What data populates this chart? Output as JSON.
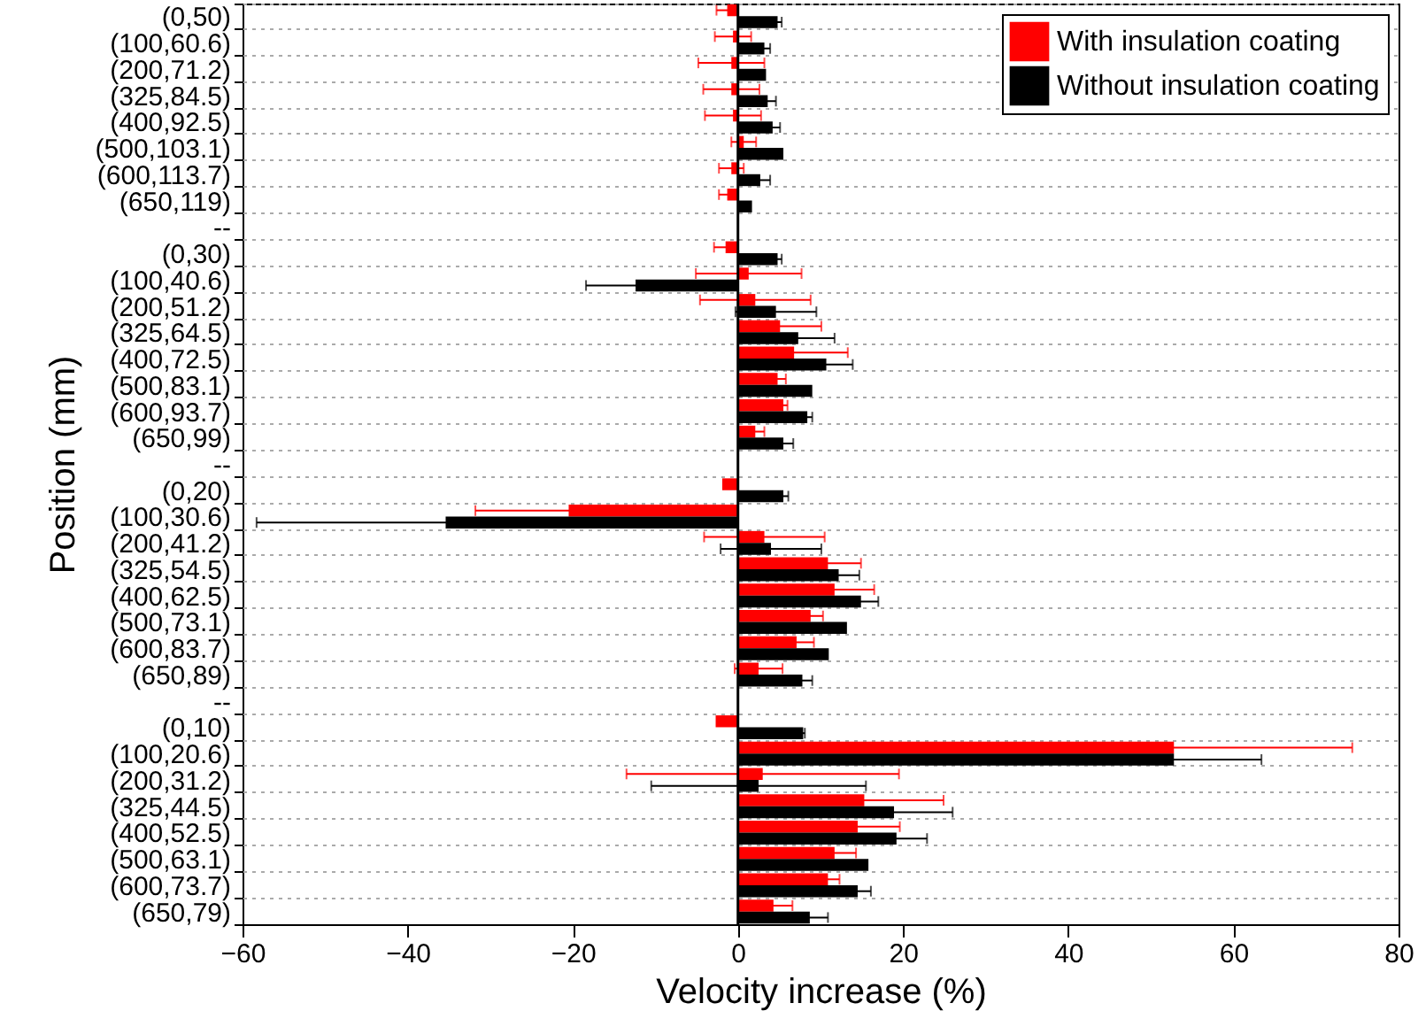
{
  "chart_data": {
    "type": "bar",
    "orientation": "horizontal",
    "xlabel": "Velocity increase (%)",
    "ylabel": "Position (mm)",
    "categories": [
      "(0,50)",
      "(100,60.6)",
      "(200,71.2)",
      "(325,84.5)",
      "(400,92.5)",
      "(500,103.1)",
      "(600,113.7)",
      "(650,119)",
      "--",
      "(0,30)",
      "(100,40.6)",
      "(200,51.2)",
      "(325,64.5)",
      "(400,72.5)",
      "(500,83.1)",
      "(600,93.7)",
      "(650,99)",
      "--",
      "(0,20)",
      "(100,30.6)",
      "(200,41.2)",
      "(325,54.5)",
      "(400,62.5)",
      "(500,73.1)",
      "(600,83.7)",
      "(650,89)",
      "--",
      "(0,10)",
      "(100,20.6)",
      "(200,31.2)",
      "(325,44.5)",
      "(400,52.5)",
      "(500,63.1)",
      "(600,73.7)",
      "(650,79)"
    ],
    "series": [
      {
        "name": "With insulation coating",
        "color": "#ff0000",
        "values": [
          -1.3,
          -0.6,
          -0.8,
          -0.8,
          -0.6,
          0.7,
          -0.8,
          -1.3,
          null,
          -1.5,
          1.3,
          2.1,
          5.1,
          6.8,
          4.8,
          5.5,
          2.1,
          null,
          -1.9,
          -20.5,
          3.2,
          10.9,
          11.7,
          8.8,
          7.1,
          2.5,
          null,
          -2.7,
          52.8,
          3.0,
          15.3,
          14.5,
          11.7,
          10.9,
          4.3
        ],
        "errors": [
          1.3,
          2.2,
          4.0,
          3.4,
          3.4,
          1.5,
          1.5,
          1.0,
          null,
          1.4,
          6.4,
          6.7,
          5.0,
          6.5,
          1.0,
          0.5,
          1.1,
          null,
          null,
          11.3,
          7.3,
          4.0,
          4.8,
          1.5,
          2.1,
          2.9,
          null,
          null,
          21.6,
          16.5,
          9.6,
          5.1,
          2.6,
          1.4,
          2.3
        ]
      },
      {
        "name": "Without insulation coating",
        "color": "#000000",
        "values": [
          4.8,
          3.2,
          3.4,
          3.6,
          4.2,
          5.5,
          2.7,
          1.7,
          null,
          4.8,
          -12.4,
          4.6,
          7.3,
          10.7,
          9.0,
          8.4,
          5.5,
          null,
          5.5,
          -35.4,
          4.0,
          12.2,
          14.9,
          13.2,
          11.0,
          7.8,
          null,
          7.9,
          52.8,
          2.5,
          18.9,
          19.2,
          15.8,
          14.5,
          8.7
        ],
        "errors": [
          0.5,
          0.7,
          null,
          1.0,
          0.9,
          null,
          1.2,
          null,
          null,
          0.5,
          6.0,
          4.9,
          4.4,
          3.2,
          null,
          0.6,
          1.2,
          null,
          0.6,
          22.9,
          6.1,
          2.5,
          2.1,
          null,
          null,
          1.2,
          null,
          0.2,
          10.6,
          13.0,
          7.1,
          3.7,
          null,
          1.6,
          2.2
        ]
      }
    ],
    "xlim": [
      -60,
      80
    ],
    "xticks": [
      -60,
      -40,
      -20,
      0,
      20,
      40,
      60,
      80
    ],
    "grid": "y",
    "legend": "top right"
  }
}
